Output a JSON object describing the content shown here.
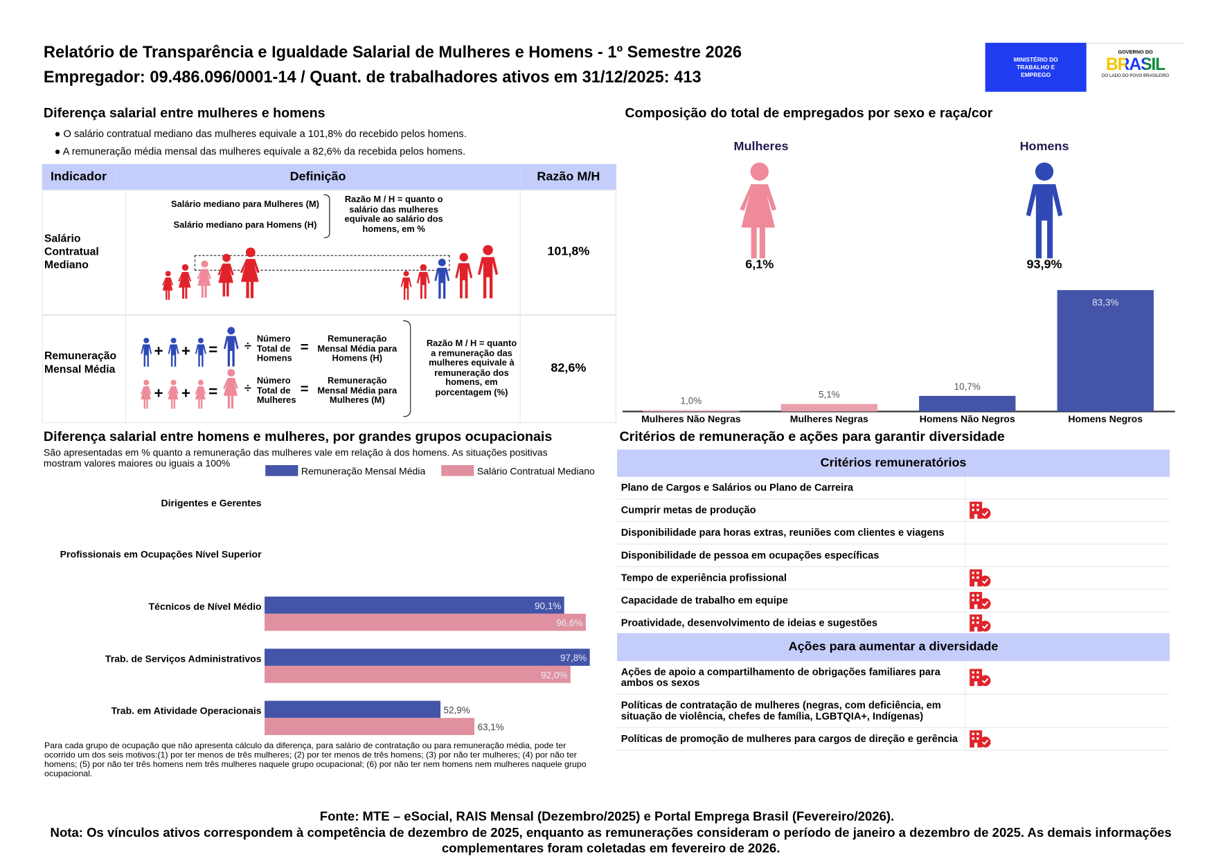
{
  "header": {
    "title": "Relatório de Transparência e Igualdade Salarial de Mulheres e Homens - 1º Semestre 2026",
    "subtitle": "Empregador: 09.486.096/0001-14 / Quant. de trabalhadores ativos em 31/12/2025: 413",
    "logo_ministry": "MINISTÉRIO DO TRABALHO E EMPREGO",
    "logo_gov_top": "GOVERNO DO",
    "logo_gov_main": "BRASIL",
    "logo_gov_bottom": "DO LADO DO POVO BRASILEIRO",
    "colors": {
      "ministry_blue": "#1f3cf0"
    }
  },
  "salary_diff": {
    "title": "Diferença salarial entre mulheres e homens",
    "bullets": [
      "O salário contratual mediano das mulheres equivale a 101,8% do recebido pelos homens.",
      "A remuneração média mensal das mulheres equivale a 82,6% da recebida pelos homens."
    ],
    "table": {
      "headers": [
        "Indicador",
        "Definição",
        "Razão M/H"
      ],
      "rows": [
        {
          "indicator": "Salário Contratual Mediano",
          "def_women": "Salário mediano para Mulheres (M)",
          "def_men": "Salário mediano para Homens (H)",
          "def_ratio": "Razão M / H = quanto o salário das mulheres equivale ao salário dos homens, em %",
          "value": "101,8%"
        },
        {
          "indicator": "Remuneração Mensal Média",
          "count_men": "Número Total de Homens",
          "result_men": "Remuneração Mensal Média para Homens (H)",
          "count_women": "Número Total de Mulheres",
          "result_women": "Remuneração Mensal Média para Mulheres (M)",
          "def_ratio": "Razão M / H = quanto a remuneração das mulheres equivale à remuneração dos homens, em porcentagem (%)",
          "value": "82,6%"
        }
      ]
    }
  },
  "composition": {
    "title": "Composição do total de empregados por sexo e raça/cor",
    "women_label": "Mulheres",
    "men_label": "Homens",
    "women_pct": "6,1%",
    "men_pct": "93,9%",
    "colors": {
      "women": "#ee8a99",
      "men": "#2f49b5"
    }
  },
  "occupational": {
    "title": "Diferença salarial entre homens e mulheres, por grandes grupos ocupacionais",
    "subtitle": "São apresentadas em % quanto a remuneração das mulheres vale em relação à dos homens. As situações positivas mostram valores maiores ou iguais a 100%",
    "footnote": "Para cada grupo de ocupação que não apresenta cálculo da diferença, para salário de contratação ou para remuneração média, pode ter ocorrido um dos seis motivos:(1) por ter menos de três mulheres; (2) por ter menos de três homens; (3) por não ter mulheres; (4) por não ter homens; (5) por não ter três homens nem três mulheres naquele grupo ocupacional; (6) por não ter nem homens nem mulheres naquele grupo ocupacional."
  },
  "chart_data": [
    {
      "type": "bar",
      "title": "",
      "categories": [
        "Mulheres Não Negras",
        "Mulheres Negras",
        "Homens Não Negros",
        "Homens Negros"
      ],
      "values": [
        1.0,
        5.1,
        10.7,
        83.3
      ],
      "labels": [
        "1,0%",
        "5,1%",
        "10,7%",
        "83,3%"
      ],
      "colors": [
        "#f2c4cb",
        "#e8a0aa",
        "#4454a8",
        "#4454a8"
      ],
      "ylim": [
        0,
        83.3
      ],
      "grid": false
    },
    {
      "type": "bar",
      "orientation": "horizontal",
      "title": "",
      "categories": [
        "Dirigentes e Gerentes",
        "Profissionais em Ocupações Nível Superior",
        "Técnicos de Nível Médio",
        "Trab. de Serviços Administrativos",
        "Trab. em Atividade Operacionais"
      ],
      "series": [
        {
          "name": "Remuneração Mensal Média",
          "color": "#4454a8",
          "values": [
            null,
            null,
            90.1,
            97.8,
            52.9
          ],
          "labels": [
            "",
            "",
            "90,1%",
            "97,8%",
            "52,9%"
          ]
        },
        {
          "name": "Salário Contratual Mediano",
          "color": "#e0909f",
          "values": [
            null,
            null,
            96.6,
            92.0,
            63.1
          ],
          "labels": [
            "",
            "",
            "96,6%",
            "92,0%",
            "63,1%"
          ]
        }
      ],
      "legend": "top-right",
      "grid": false
    }
  ],
  "criteria": {
    "title": "Critérios de remuneração e ações para garantir diversidade",
    "section1": "Critérios remuneratórios",
    "items1": [
      {
        "label": "Plano de Cargos e Salários ou Plano de Carreira",
        "checked": false
      },
      {
        "label": "Cumprir metas de produção",
        "checked": true
      },
      {
        "label": "Disponibilidade para horas extras, reuniões com clientes e viagens",
        "checked": false
      },
      {
        "label": "Disponibilidade de pessoa em ocupações específicas",
        "checked": false
      },
      {
        "label": "Tempo de experiência profissional",
        "checked": true
      },
      {
        "label": "Capacidade de trabalho em equipe",
        "checked": true
      },
      {
        "label": "Proatividade, desenvolvimento de ideias e sugestões",
        "checked": true
      }
    ],
    "section2": "Ações para aumentar a diversidade",
    "items2": [
      {
        "label": "Ações de apoio a compartilhamento de obrigações familiares para ambos os sexos",
        "checked": true
      },
      {
        "label": "Políticas de contratação de mulheres (negras, com deficiência, em situação de violência, chefes de família, LGBTQIA+, Indígenas)",
        "checked": false
      },
      {
        "label": "Políticas de promoção de mulheres para cargos de direção e gerência",
        "checked": true
      }
    ]
  },
  "footer": {
    "source": "Fonte: MTE – eSocial, RAIS Mensal (Dezembro/2025) e Portal Emprega Brasil (Fevereiro/2026).",
    "note": "Nota: Os vínculos ativos correspondem à competência de dezembro de 2025, enquanto as remunerações consideram o período de janeiro a dezembro de 2025. As demais informações complementares foram coletadas em fevereiro de 2026."
  }
}
